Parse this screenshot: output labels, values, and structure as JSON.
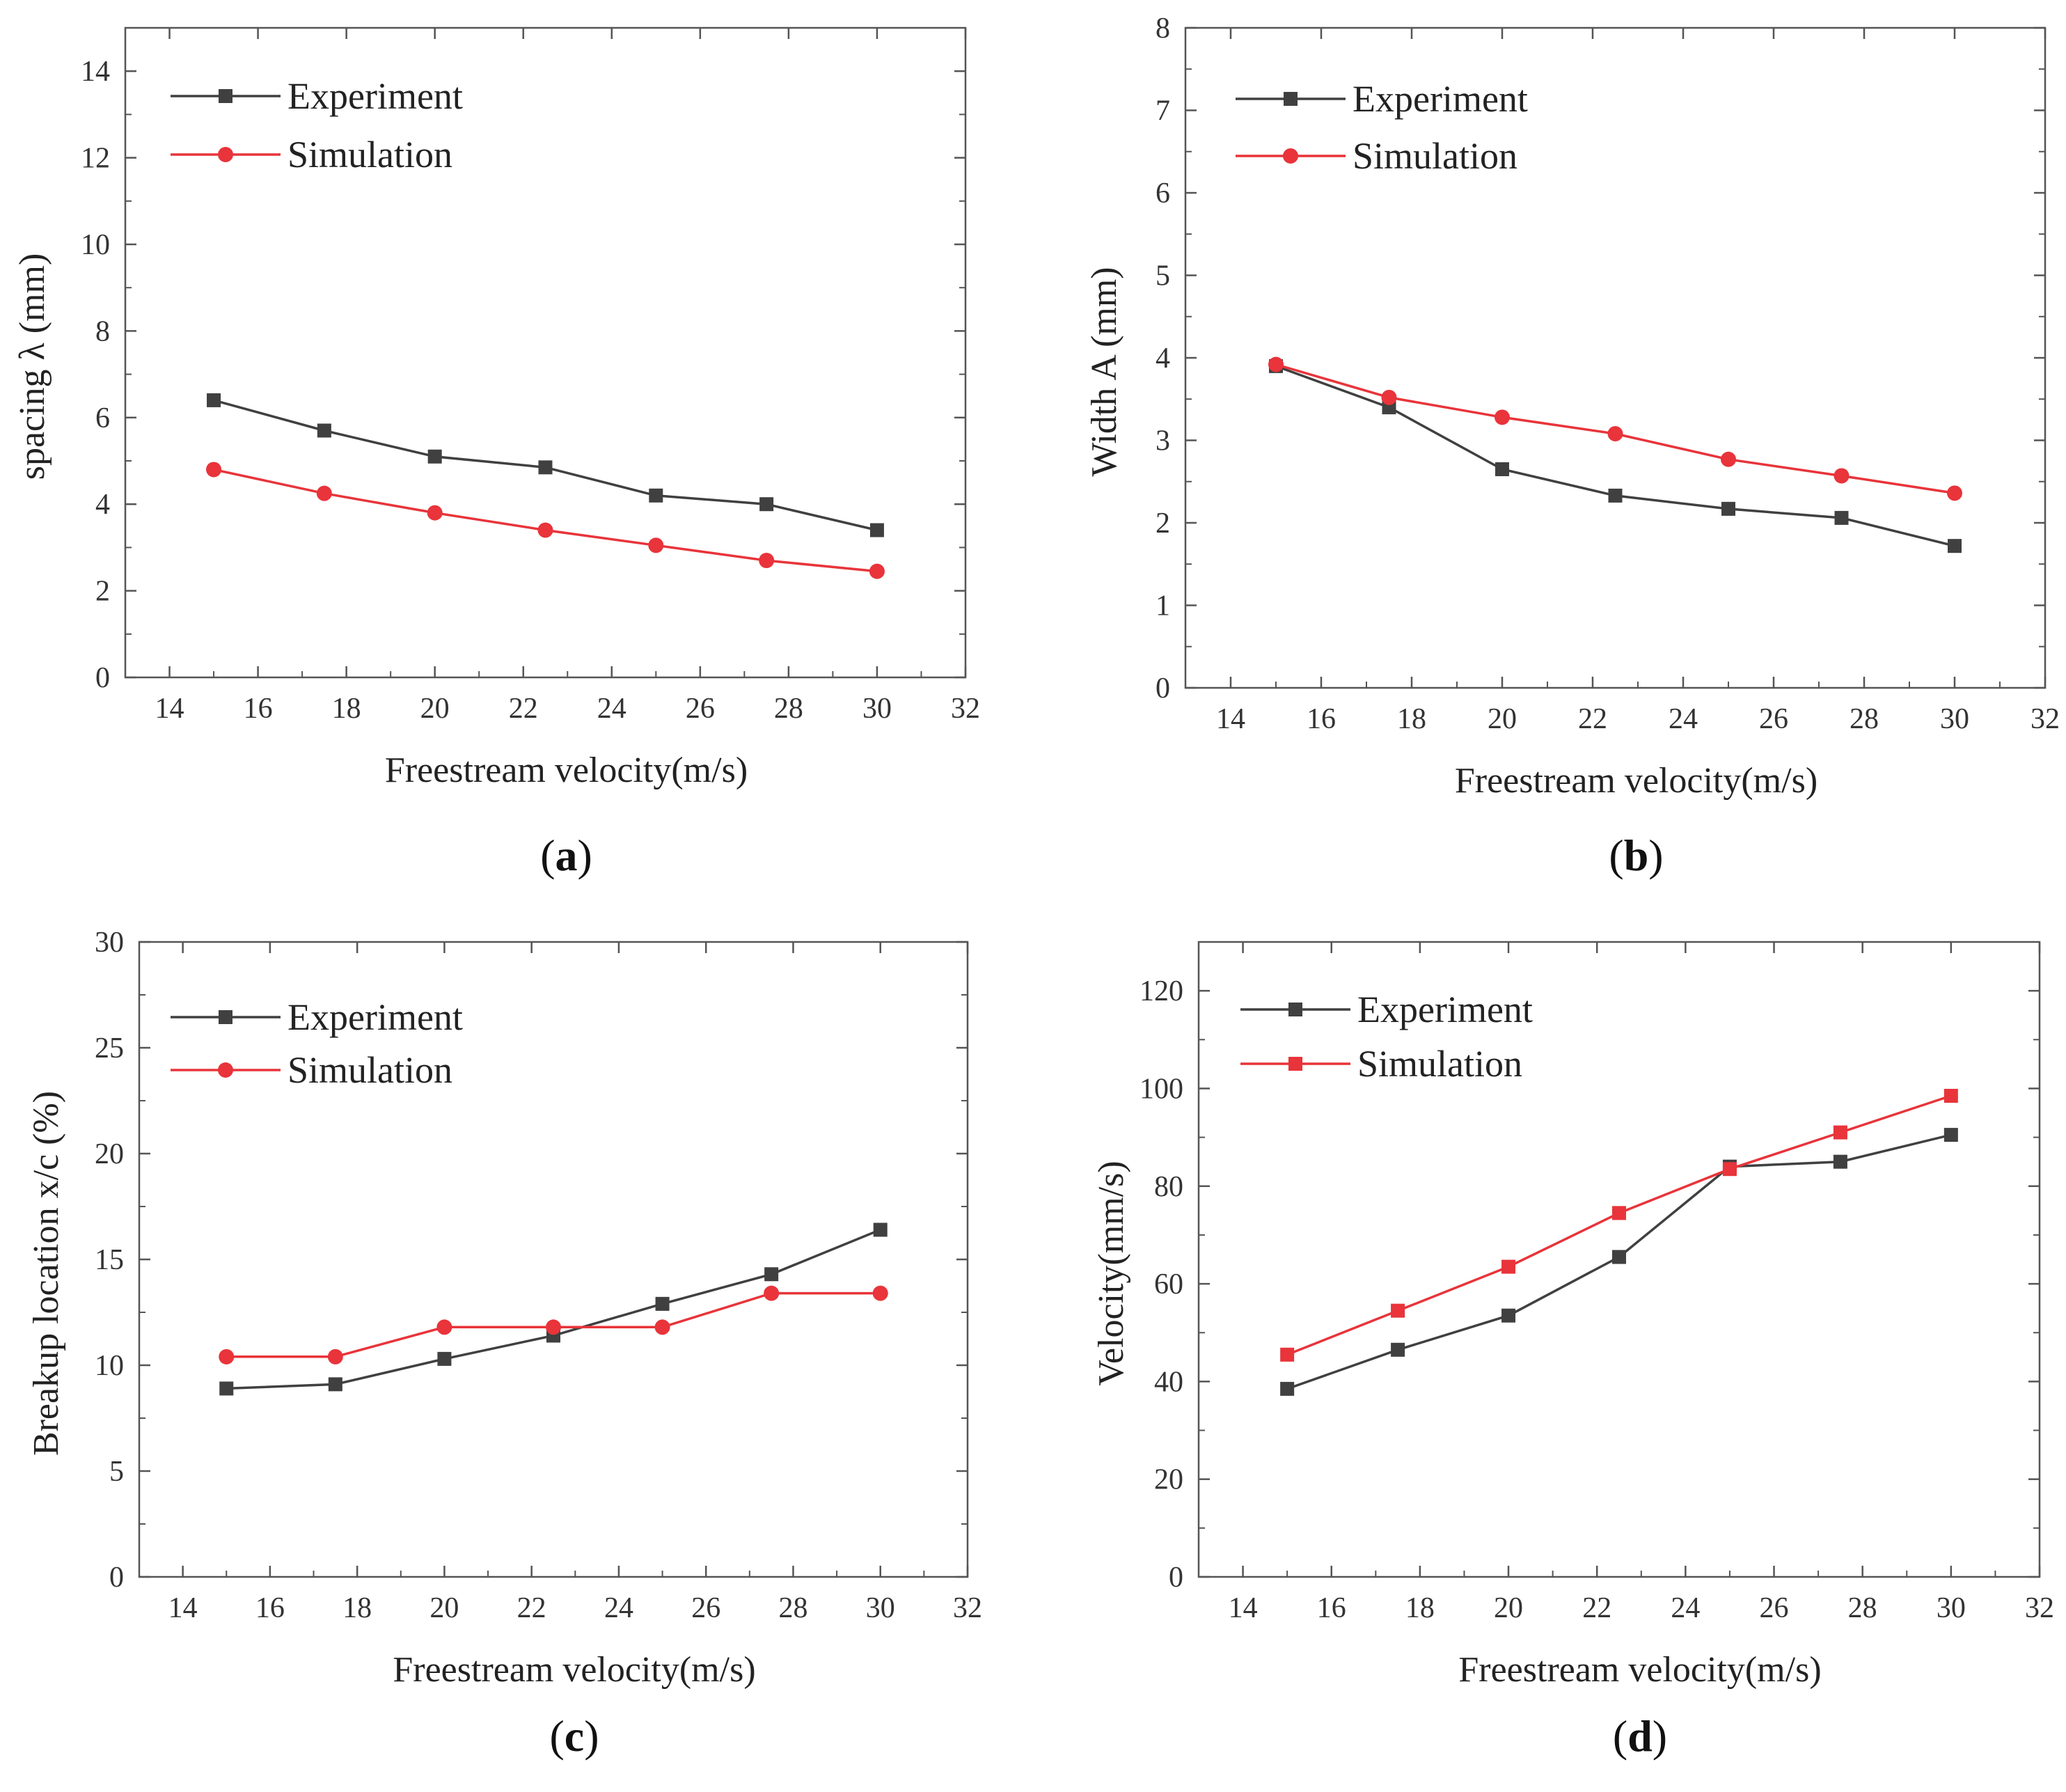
{
  "colors": {
    "experiment": "#404040",
    "simulation": "#e8343a",
    "axis": "#555555"
  },
  "chart_data": [
    {
      "panel_label": "a",
      "type": "line",
      "xlabel": "Freestream velocity(m/s)",
      "ylabel": "spacing λ (mm)",
      "xlim": [
        13,
        32
      ],
      "ylim": [
        0,
        15
      ],
      "xticks": [
        14,
        16,
        18,
        20,
        22,
        24,
        26,
        28,
        30,
        32
      ],
      "yticks": [
        0,
        2,
        4,
        6,
        8,
        10,
        12,
        14
      ],
      "legend_position": "top-left",
      "series": [
        {
          "name": "Experiment",
          "marker": "square",
          "color": "#404040",
          "x": [
            15,
            17.5,
            20,
            22.5,
            25,
            27.5,
            30
          ],
          "y": [
            6.4,
            5.7,
            5.1,
            4.85,
            4.2,
            4.0,
            3.4
          ]
        },
        {
          "name": "Simulation",
          "marker": "circle",
          "color": "#e8343a",
          "x": [
            15,
            17.5,
            20,
            22.5,
            25,
            27.5,
            30
          ],
          "y": [
            4.8,
            4.25,
            3.8,
            3.4,
            3.05,
            2.7,
            2.45
          ]
        }
      ]
    },
    {
      "panel_label": "b",
      "type": "line",
      "xlabel": "Freestream velocity(m/s)",
      "ylabel": "Width A (mm)",
      "xlim": [
        13,
        32
      ],
      "ylim": [
        0,
        8
      ],
      "xticks": [
        14,
        16,
        18,
        20,
        22,
        24,
        26,
        28,
        30,
        32
      ],
      "yticks": [
        0,
        1,
        2,
        3,
        4,
        5,
        6,
        7,
        8
      ],
      "legend_position": "top-left",
      "series": [
        {
          "name": "Experiment",
          "marker": "square",
          "color": "#404040",
          "x": [
            15,
            17.5,
            20,
            22.5,
            25,
            27.5,
            30
          ],
          "y": [
            3.9,
            3.4,
            2.65,
            2.33,
            2.17,
            2.06,
            1.72
          ]
        },
        {
          "name": "Simulation",
          "marker": "circle",
          "color": "#e8343a",
          "x": [
            15,
            17.5,
            20,
            22.5,
            25,
            27.5,
            30
          ],
          "y": [
            3.92,
            3.52,
            3.28,
            3.08,
            2.77,
            2.57,
            2.36
          ]
        }
      ]
    },
    {
      "panel_label": "c",
      "type": "line",
      "xlabel": "Freestream velocity(m/s)",
      "ylabel": "Breakup location  x/c (%)",
      "xlim": [
        13,
        32
      ],
      "ylim": [
        0,
        30
      ],
      "xticks": [
        14,
        16,
        18,
        20,
        22,
        24,
        26,
        28,
        30,
        32
      ],
      "yticks": [
        0,
        5,
        10,
        15,
        20,
        25,
        30
      ],
      "legend_position": "top-left",
      "series": [
        {
          "name": "Experiment",
          "marker": "square",
          "color": "#404040",
          "x": [
            15,
            17.5,
            20,
            22.5,
            25,
            27.5,
            30
          ],
          "y": [
            8.9,
            9.1,
            10.3,
            11.4,
            12.9,
            14.3,
            16.4
          ]
        },
        {
          "name": "Simulation",
          "marker": "circle",
          "color": "#e8343a",
          "x": [
            15,
            17.5,
            20,
            22.5,
            25,
            27.5,
            30
          ],
          "y": [
            10.4,
            10.4,
            11.8,
            11.8,
            11.8,
            13.4,
            13.4
          ]
        }
      ]
    },
    {
      "panel_label": "d",
      "type": "line",
      "xlabel": "Freestream velocity(m/s)",
      "ylabel": "Velocity(mm/s)",
      "xlim": [
        13,
        32
      ],
      "ylim": [
        0,
        130
      ],
      "xticks": [
        14,
        16,
        18,
        20,
        22,
        24,
        26,
        28,
        30,
        32
      ],
      "yticks": [
        0,
        20,
        40,
        60,
        80,
        100,
        120
      ],
      "legend_position": "top-left",
      "series": [
        {
          "name": "Experiment",
          "marker": "square",
          "color": "#404040",
          "x": [
            15,
            17.5,
            20,
            22.5,
            25,
            27.5,
            30
          ],
          "y": [
            38.5,
            46.5,
            53.5,
            65.5,
            84,
            85,
            90.5
          ]
        },
        {
          "name": "Simulation",
          "marker": "square",
          "color": "#e8343a",
          "x": [
            15,
            17.5,
            20,
            22.5,
            25,
            27.5,
            30
          ],
          "y": [
            45.5,
            54.5,
            63.5,
            74.5,
            83.5,
            91,
            98.5
          ]
        }
      ]
    }
  ]
}
